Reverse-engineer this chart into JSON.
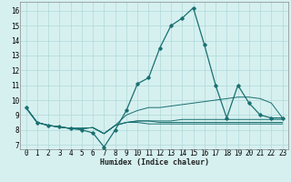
{
  "xlabel": "Humidex (Indice chaleur)",
  "xlim": [
    -0.5,
    23.5
  ],
  "ylim": [
    6.7,
    16.6
  ],
  "xticks": [
    0,
    1,
    2,
    3,
    4,
    5,
    6,
    7,
    8,
    9,
    10,
    11,
    12,
    13,
    14,
    15,
    16,
    17,
    18,
    19,
    20,
    21,
    22,
    23
  ],
  "yticks": [
    7,
    8,
    9,
    10,
    11,
    12,
    13,
    14,
    15,
    16
  ],
  "background_color": "#d6f0f0",
  "grid_color": "#b0d8d8",
  "line_color": "#1a7070",
  "lines": [
    [
      9.5,
      8.5,
      8.3,
      8.2,
      8.1,
      8.0,
      7.8,
      6.85,
      8.0,
      9.3,
      11.1,
      11.5,
      13.5,
      15.0,
      15.5,
      16.2,
      13.7,
      11.0,
      8.8,
      11.0,
      9.8,
      9.0,
      8.8,
      8.8
    ],
    [
      9.5,
      8.5,
      8.3,
      8.2,
      8.1,
      8.1,
      8.15,
      7.75,
      8.3,
      9.0,
      9.3,
      9.5,
      9.5,
      9.6,
      9.7,
      9.8,
      9.9,
      10.0,
      10.1,
      10.2,
      10.2,
      10.1,
      9.8,
      8.8
    ],
    [
      9.5,
      8.5,
      8.3,
      8.2,
      8.1,
      8.1,
      8.15,
      7.75,
      8.3,
      8.5,
      8.6,
      8.6,
      8.6,
      8.6,
      8.7,
      8.7,
      8.7,
      8.7,
      8.7,
      8.7,
      8.7,
      8.7,
      8.7,
      8.7
    ],
    [
      9.5,
      8.5,
      8.3,
      8.2,
      8.1,
      8.1,
      8.15,
      7.75,
      8.3,
      8.5,
      8.6,
      8.6,
      8.5,
      8.5,
      8.5,
      8.5,
      8.5,
      8.5,
      8.5,
      8.5,
      8.5,
      8.5,
      8.5,
      8.5
    ],
    [
      9.5,
      8.5,
      8.3,
      8.2,
      8.1,
      8.1,
      8.15,
      7.75,
      8.3,
      8.5,
      8.5,
      8.4,
      8.4,
      8.4,
      8.4,
      8.4,
      8.4,
      8.4,
      8.4,
      8.4,
      8.4,
      8.4,
      8.4,
      8.4
    ]
  ],
  "marker_line_idx": 0
}
